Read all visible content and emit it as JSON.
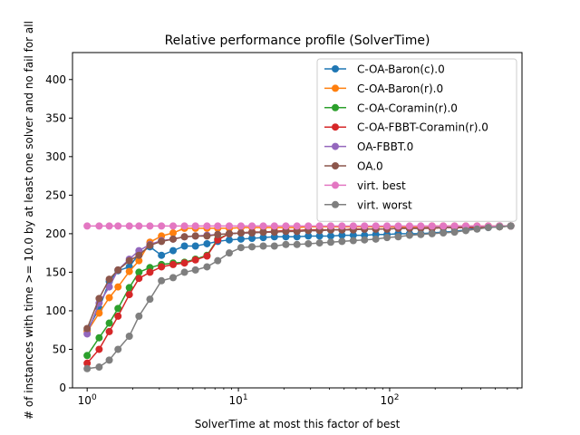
{
  "chart_data": {
    "type": "line",
    "title": "Relative performance profile (SolverTime)",
    "xlabel": "SolverTime at most this factor of best",
    "ylabel": "# of instances with time >= 10.0 by at least one solver and no fail for all",
    "x_scale": "log",
    "xlim": [
      0.8,
      750
    ],
    "ylim": [
      0,
      435
    ],
    "x_ticks": [
      {
        "value": 1,
        "label": "10^0"
      },
      {
        "value": 10,
        "label": "10^1"
      },
      {
        "value": 100,
        "label": "10^2"
      }
    ],
    "y_ticks": [
      0,
      50,
      100,
      150,
      200,
      250,
      300,
      350,
      400
    ],
    "legend_position": "top-right",
    "x": [
      1.0,
      1.2,
      1.4,
      1.6,
      1.9,
      2.2,
      2.6,
      3.1,
      3.7,
      4.4,
      5.2,
      6.2,
      7.3,
      8.7,
      10.4,
      12.3,
      14.6,
      17.3,
      20.6,
      24.4,
      29.0,
      34.4,
      40.8,
      48.4,
      57.5,
      68.2,
      81.0,
      96.1,
      114.0,
      135.4,
      160.7,
      190.7,
      226.3,
      268.6,
      318.8,
      378.4,
      449.1,
      533.0,
      632.6
    ],
    "series": [
      {
        "name": "C-OA-Baron(c).0",
        "color": "#1f77b4",
        "values": [
          75,
          103,
          138,
          152,
          157,
          174,
          183,
          172,
          178,
          184,
          184,
          187,
          190,
          192,
          193,
          194,
          195,
          196,
          196,
          196,
          197,
          197,
          197,
          198,
          198,
          198,
          199,
          199,
          200,
          200,
          200,
          201,
          202,
          203,
          205,
          207,
          208,
          209,
          210
        ]
      },
      {
        "name": "C-OA-Baron(r).0",
        "color": "#ff7f0e",
        "values": [
          73,
          97,
          117,
          131,
          151,
          165,
          189,
          197,
          201,
          207,
          207,
          207,
          207,
          207,
          208,
          208,
          208,
          208,
          208,
          208,
          209,
          209,
          209,
          209,
          209,
          209,
          209,
          209,
          209,
          209,
          209,
          210,
          210,
          210,
          210,
          210,
          210,
          210,
          210
        ]
      },
      {
        "name": "C-OA-Coramin(r).0",
        "color": "#2ca02c",
        "values": [
          42,
          65,
          84,
          103,
          130,
          150,
          156,
          160,
          162,
          163,
          167,
          172,
          193,
          200,
          201,
          202,
          202,
          203,
          204,
          204,
          205,
          205,
          205,
          205,
          206,
          206,
          206,
          206,
          207,
          207,
          207,
          207,
          208,
          208,
          208,
          208,
          209,
          209,
          210
        ]
      },
      {
        "name": "C-OA-FBBT-Coramin(r).0",
        "color": "#d62728",
        "values": [
          32,
          50,
          73,
          93,
          121,
          142,
          150,
          157,
          160,
          162,
          166,
          171,
          192,
          200,
          201,
          202,
          202,
          203,
          204,
          204,
          205,
          205,
          205,
          205,
          206,
          206,
          206,
          206,
          207,
          207,
          207,
          207,
          208,
          208,
          208,
          208,
          209,
          209,
          210
        ]
      },
      {
        "name": "OA-FBBT.0",
        "color": "#9467bd",
        "values": [
          70,
          110,
          131,
          153,
          167,
          178,
          186,
          191,
          193,
          196,
          197,
          198,
          199,
          200,
          201,
          201,
          202,
          202,
          203,
          203,
          204,
          204,
          205,
          205,
          205,
          206,
          206,
          206,
          207,
          207,
          207,
          208,
          208,
          208,
          209,
          209,
          209,
          210,
          210
        ]
      },
      {
        "name": "OA.0",
        "color": "#8c564b",
        "values": [
          77,
          116,
          141,
          153,
          165,
          172,
          185,
          190,
          193,
          196,
          197,
          197,
          199,
          200,
          201,
          201,
          202,
          202,
          203,
          203,
          204,
          204,
          205,
          205,
          205,
          206,
          206,
          206,
          207,
          207,
          207,
          208,
          208,
          208,
          209,
          209,
          209,
          210,
          210
        ]
      },
      {
        "name": "virt. best",
        "color": "#e377c2",
        "values": [
          210,
          210,
          210,
          210,
          210,
          210,
          210,
          210,
          210,
          210,
          210,
          210,
          210,
          210,
          210,
          210,
          210,
          210,
          210,
          210,
          210,
          210,
          210,
          210,
          210,
          210,
          210,
          210,
          210,
          210,
          210,
          210,
          210,
          210,
          210,
          210,
          210,
          210,
          210
        ]
      },
      {
        "name": "virt. worst",
        "color": "#7f7f7f",
        "values": [
          25,
          27,
          36,
          50,
          67,
          93,
          115,
          139,
          143,
          150,
          153,
          157,
          165,
          175,
          182,
          183,
          184,
          184,
          186,
          186,
          187,
          188,
          189,
          190,
          191,
          192,
          193,
          195,
          196,
          198,
          199,
          200,
          201,
          202,
          204,
          206,
          208,
          209,
          210
        ]
      }
    ]
  }
}
